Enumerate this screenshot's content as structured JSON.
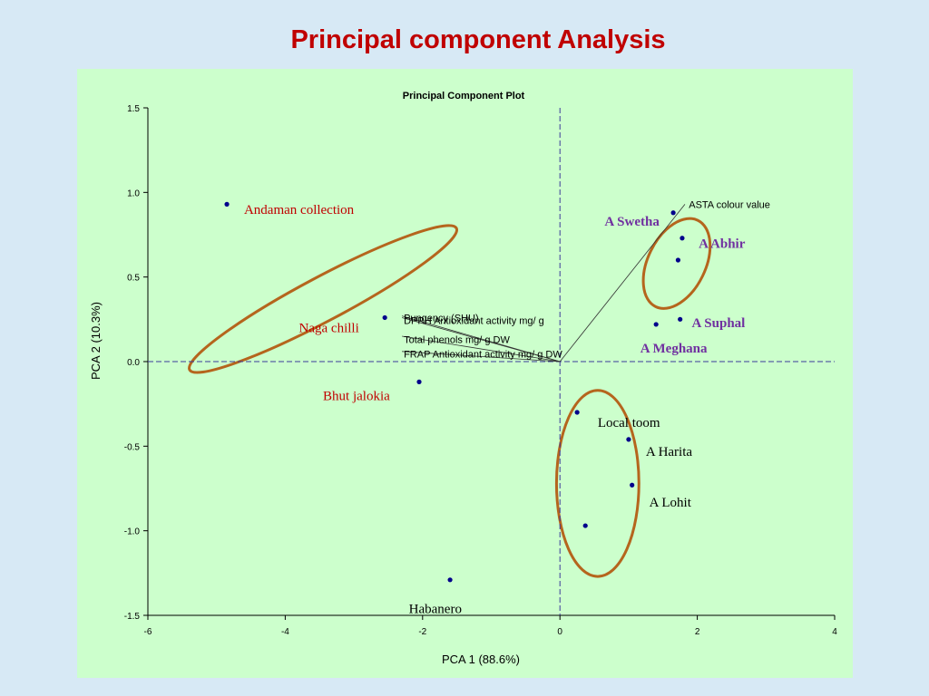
{
  "slide": {
    "title": "Principal component Analysis"
  },
  "colors": {
    "point": "#00008b",
    "ellipse": "#b5651d",
    "red_label": "#c00000",
    "purple_label": "#7030a0",
    "black_label": "#000000"
  },
  "chart_data": {
    "type": "scatter",
    "title": "Principal Component Plot",
    "xlabel": "PCA 1 (88.6%)",
    "ylabel": "PCA 2 (10.3%)",
    "xlim": [
      -6,
      4
    ],
    "ylim": [
      -1.5,
      1.5
    ],
    "x_ticks": [
      -6,
      -4,
      -2,
      0,
      2,
      4
    ],
    "y_ticks": [
      -1.5,
      -1.0,
      -0.5,
      0.0,
      0.5,
      1.0,
      1.5
    ],
    "x_tick_labels": [
      "-6",
      "-4",
      "-2",
      "0",
      "2",
      "4"
    ],
    "y_tick_labels": [
      "-1.5",
      "-1.0",
      "-0.5",
      "0.0",
      "0.5",
      "1.0",
      "1.5"
    ],
    "points": [
      {
        "x": -4.85,
        "y": 0.93
      },
      {
        "x": -2.55,
        "y": 0.26
      },
      {
        "x": -2.05,
        "y": -0.12
      },
      {
        "x": -1.6,
        "y": -1.29
      },
      {
        "x": 0.25,
        "y": -0.3
      },
      {
        "x": 1.0,
        "y": -0.46
      },
      {
        "x": 1.05,
        "y": -0.73
      },
      {
        "x": 0.37,
        "y": -0.97
      },
      {
        "x": 1.65,
        "y": 0.88
      },
      {
        "x": 1.78,
        "y": 0.73
      },
      {
        "x": 1.72,
        "y": 0.6
      },
      {
        "x": 1.75,
        "y": 0.25
      },
      {
        "x": 1.4,
        "y": 0.22
      }
    ],
    "point_labels": [
      {
        "text": "Andaman collection",
        "x": -4.6,
        "y": 0.9,
        "color": "red_label",
        "bold": false
      },
      {
        "text": "Naga chilli",
        "x": -3.8,
        "y": 0.2,
        "color": "red_label",
        "bold": false
      },
      {
        "text": "Bhut jalokia",
        "x": -3.45,
        "y": -0.2,
        "color": "red_label",
        "bold": false
      },
      {
        "text": "Habanero",
        "x": -2.2,
        "y": -1.46,
        "color": "black_label",
        "bold": false
      },
      {
        "text": "Local toom",
        "x": 0.55,
        "y": -0.36,
        "color": "black_label",
        "bold": false
      },
      {
        "text": "A Harita",
        "x": 1.25,
        "y": -0.53,
        "color": "black_label",
        "bold": false
      },
      {
        "text": "A Lohit",
        "x": 1.3,
        "y": -0.83,
        "color": "black_label",
        "bold": false
      },
      {
        "text": "A Swetha",
        "x": 0.65,
        "y": 0.83,
        "color": "purple_label",
        "bold": true
      },
      {
        "text": "A Abhir",
        "x": 2.02,
        "y": 0.7,
        "color": "purple_label",
        "bold": true
      },
      {
        "text": "A Suphal",
        "x": 1.92,
        "y": 0.23,
        "color": "purple_label",
        "bold": true
      },
      {
        "text": "A Meghana",
        "x": 1.17,
        "y": 0.08,
        "color": "purple_label",
        "bold": true
      }
    ],
    "vectors": [
      {
        "label": "ASTA colour value",
        "x": 1.82,
        "y": 0.93,
        "label_x": 1.85,
        "label_y": 0.93
      },
      {
        "label": "Pungency (SHU)",
        "x": -2.3,
        "y": 0.27,
        "label_x": -2.3,
        "label_y": 0.26
      },
      {
        "label": "DPPH Antioxidant  activity mg/ g",
        "x": -2.3,
        "y": 0.26,
        "label_x": -2.3,
        "label_y": 0.245
      },
      {
        "label": "Total phenols mg/ g DW",
        "x": -2.3,
        "y": 0.15,
        "label_x": -2.3,
        "label_y": 0.13
      },
      {
        "label": "FRAP Antioxidant  activity mg/ g DW",
        "x": -2.3,
        "y": 0.06,
        "label_x": -2.3,
        "label_y": 0.045
      }
    ],
    "ellipses": [
      {
        "cx": -3.45,
        "cy": 0.37,
        "rx": 2.2,
        "ry": 0.13,
        "angle_deg": -28
      },
      {
        "cx": 1.7,
        "cy": 0.58,
        "rx": 0.7,
        "ry": 0.17,
        "angle_deg": -64
      },
      {
        "cx": 0.55,
        "cy": -0.72,
        "rx": 0.6,
        "ry": 0.55,
        "angle_deg": 0
      }
    ]
  }
}
